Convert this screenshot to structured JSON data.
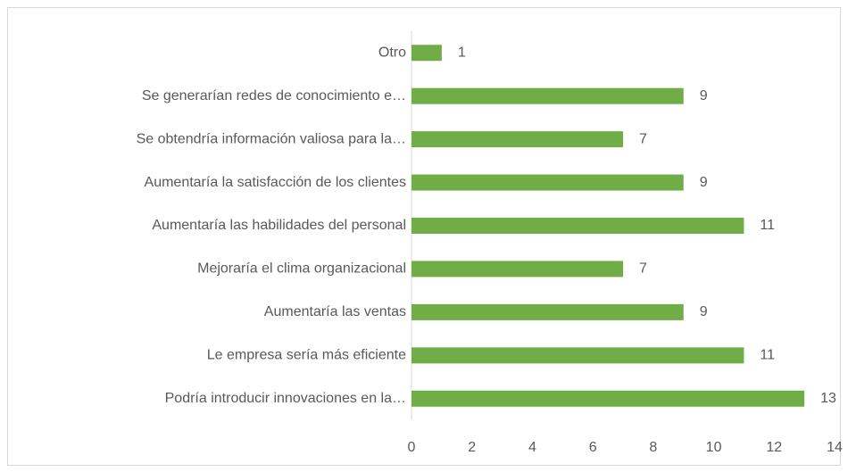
{
  "chart_data": {
    "type": "bar",
    "orientation": "horizontal",
    "categories": [
      "Otro",
      "Se generarían redes de conocimiento e…",
      "Se obtendría información valiosa para la…",
      "Aumentaría la satisfacción de los clientes",
      "Aumentaría las habilidades del personal",
      "Mejoraría el clima organizacional",
      "Aumentaría las ventas",
      "Le empresa sería más eficiente",
      "Podría introducir innovaciones en la…"
    ],
    "values": [
      1,
      9,
      7,
      9,
      11,
      7,
      9,
      11,
      13
    ],
    "color": "#70ad47",
    "xlim": [
      0,
      14
    ],
    "xticks": [
      0,
      2,
      4,
      6,
      8,
      10,
      12,
      14
    ],
    "grid": false
  }
}
